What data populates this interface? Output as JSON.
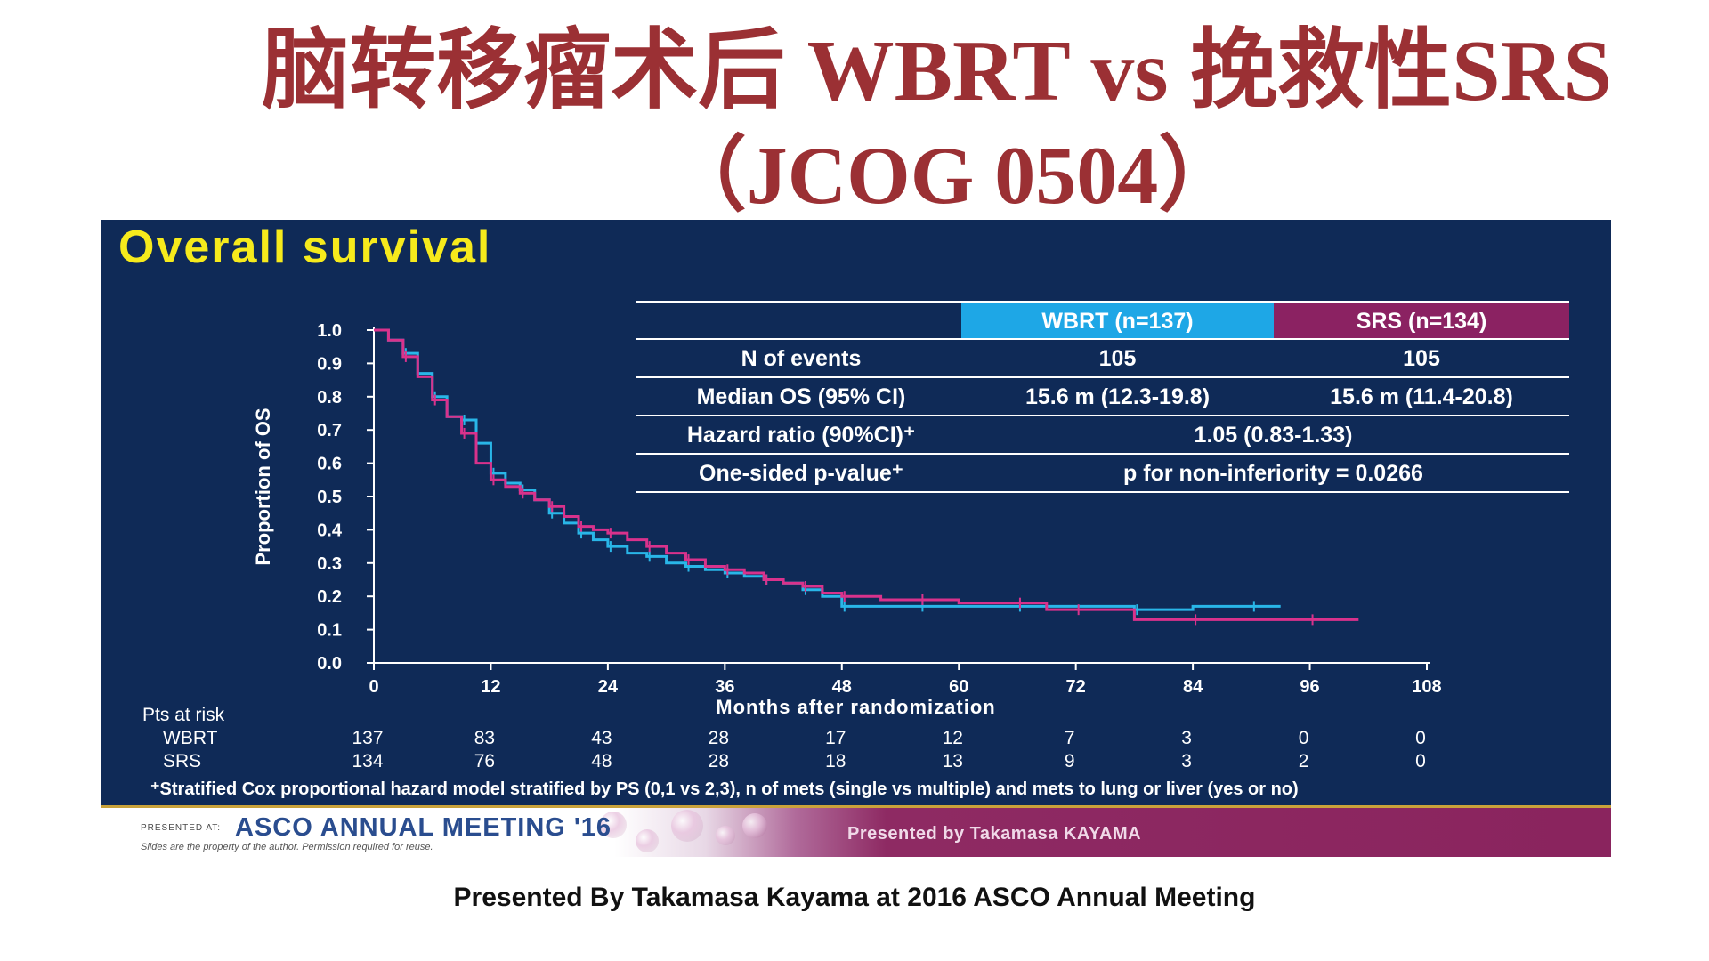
{
  "slide": {
    "title_line1": "脑转移瘤术后 WBRT vs 挽救性SRS",
    "title_line2": "（JCOG 0504）",
    "credit": "Presented By Takamasa Kayama at 2016 ASCO Annual Meeting"
  },
  "panel": {
    "heading": "Overall survival",
    "footnote": "⁺Stratified Cox proportional hazard model stratified by PS (0,1 vs 2,3), n of mets (single vs multiple) and mets to lung or liver (yes or no)"
  },
  "summary_table": {
    "col_wbrt": "WBRT (n=137)",
    "col_srs": "SRS (n=134)",
    "rows": [
      {
        "label": "N of events",
        "wbrt": "105",
        "srs": "105"
      },
      {
        "label": "Median OS (95% CI)",
        "wbrt": "15.6 m (12.3-19.8)",
        "srs": "15.6 m (11.4-20.8)"
      },
      {
        "label": "Hazard ratio (90%CI)⁺",
        "combined": "1.05 (0.83-1.33)"
      },
      {
        "label": "One-sided p-value⁺",
        "combined": "p for non-inferiority = 0.0266"
      }
    ],
    "colors": {
      "wbrt_header": "#1ea7e6",
      "srs_header": "#8b2262"
    }
  },
  "risk_table": {
    "header": "Pts at risk",
    "rows": [
      {
        "label": "WBRT",
        "values": [
          "137",
          "83",
          "43",
          "28",
          "17",
          "12",
          "7",
          "3",
          "0",
          "0"
        ]
      },
      {
        "label": "SRS",
        "values": [
          "134",
          "76",
          "48",
          "28",
          "18",
          "13",
          "9",
          "3",
          "2",
          "0"
        ]
      }
    ]
  },
  "banner": {
    "presented_at": "PRESENTED AT:",
    "meeting": "ASCO ANNUAL MEETING '16",
    "property_note": "Slides are the property of the author. Permission required for reuse.",
    "presenter": "Presented by Takamasa KAYAMA"
  },
  "chart_data": {
    "type": "line",
    "title": "Overall survival",
    "xlabel": "Months after randomization",
    "ylabel": "Proportion of OS",
    "xlim": [
      0,
      108
    ],
    "ylim": [
      0,
      1.0
    ],
    "xticks": [
      "0",
      "12",
      "24",
      "36",
      "48",
      "60",
      "72",
      "84",
      "96",
      "108"
    ],
    "yticks": [
      "0.0",
      "0.1",
      "0.2",
      "0.3",
      "0.4",
      "0.5",
      "0.6",
      "0.7",
      "0.8",
      "0.9",
      "1.0"
    ],
    "grid": false,
    "series": [
      {
        "name": "WBRT",
        "color": "#29b6e8",
        "x": [
          0,
          1.5,
          3,
          4.5,
          6,
          7.5,
          9,
          10.5,
          12,
          13.5,
          15,
          16.5,
          18,
          19.5,
          21,
          22.5,
          24,
          26,
          28,
          30,
          32,
          34,
          36,
          38,
          40,
          42,
          44,
          46,
          48,
          52,
          56,
          60,
          66,
          72,
          78,
          84,
          90,
          93
        ],
        "y": [
          1.0,
          0.97,
          0.93,
          0.87,
          0.8,
          0.74,
          0.73,
          0.66,
          0.57,
          0.54,
          0.52,
          0.49,
          0.45,
          0.42,
          0.39,
          0.37,
          0.35,
          0.33,
          0.32,
          0.3,
          0.29,
          0.28,
          0.27,
          0.26,
          0.25,
          0.24,
          0.22,
          0.2,
          0.17,
          0.17,
          0.17,
          0.17,
          0.17,
          0.17,
          0.16,
          0.17,
          0.17,
          0.17
        ]
      },
      {
        "name": "SRS",
        "color": "#d9328c",
        "x": [
          0,
          1.5,
          3,
          4.5,
          6,
          7.5,
          9,
          10.5,
          12,
          13.5,
          15,
          16.5,
          18,
          19.5,
          21,
          22.5,
          24,
          26,
          28,
          30,
          32,
          34,
          36,
          38,
          40,
          42,
          44,
          46,
          48,
          52,
          56,
          60,
          66,
          69,
          72,
          78,
          84,
          90,
          96,
          101
        ],
        "y": [
          1.0,
          0.97,
          0.92,
          0.86,
          0.79,
          0.74,
          0.69,
          0.6,
          0.55,
          0.53,
          0.51,
          0.49,
          0.47,
          0.44,
          0.41,
          0.4,
          0.39,
          0.37,
          0.35,
          0.33,
          0.31,
          0.29,
          0.28,
          0.27,
          0.25,
          0.24,
          0.23,
          0.21,
          0.2,
          0.19,
          0.19,
          0.18,
          0.18,
          0.16,
          0.16,
          0.13,
          0.13,
          0.13,
          0.13,
          0.13
        ]
      }
    ]
  }
}
